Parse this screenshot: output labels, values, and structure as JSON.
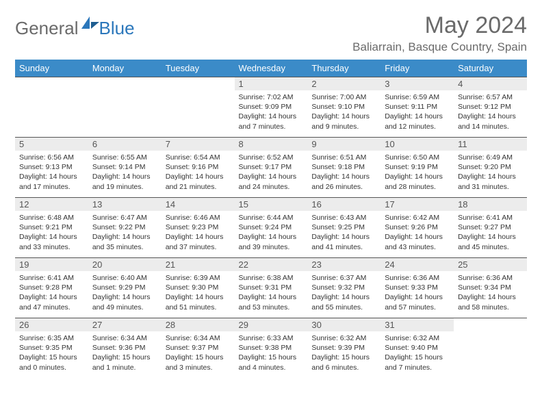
{
  "logo": {
    "general": "General",
    "blue": "Blue"
  },
  "title": "May 2024",
  "location": "Baliarrain, Basque Country, Spain",
  "brand_color": "#3b8bc8",
  "weekdays": [
    "Sunday",
    "Monday",
    "Tuesday",
    "Wednesday",
    "Thursday",
    "Friday",
    "Saturday"
  ],
  "weeks": [
    [
      null,
      null,
      null,
      {
        "n": "1",
        "rise": "7:02 AM",
        "set": "9:09 PM",
        "dl": "14 hours and 7 minutes."
      },
      {
        "n": "2",
        "rise": "7:00 AM",
        "set": "9:10 PM",
        "dl": "14 hours and 9 minutes."
      },
      {
        "n": "3",
        "rise": "6:59 AM",
        "set": "9:11 PM",
        "dl": "14 hours and 12 minutes."
      },
      {
        "n": "4",
        "rise": "6:57 AM",
        "set": "9:12 PM",
        "dl": "14 hours and 14 minutes."
      }
    ],
    [
      {
        "n": "5",
        "rise": "6:56 AM",
        "set": "9:13 PM",
        "dl": "14 hours and 17 minutes."
      },
      {
        "n": "6",
        "rise": "6:55 AM",
        "set": "9:14 PM",
        "dl": "14 hours and 19 minutes."
      },
      {
        "n": "7",
        "rise": "6:54 AM",
        "set": "9:16 PM",
        "dl": "14 hours and 21 minutes."
      },
      {
        "n": "8",
        "rise": "6:52 AM",
        "set": "9:17 PM",
        "dl": "14 hours and 24 minutes."
      },
      {
        "n": "9",
        "rise": "6:51 AM",
        "set": "9:18 PM",
        "dl": "14 hours and 26 minutes."
      },
      {
        "n": "10",
        "rise": "6:50 AM",
        "set": "9:19 PM",
        "dl": "14 hours and 28 minutes."
      },
      {
        "n": "11",
        "rise": "6:49 AM",
        "set": "9:20 PM",
        "dl": "14 hours and 31 minutes."
      }
    ],
    [
      {
        "n": "12",
        "rise": "6:48 AM",
        "set": "9:21 PM",
        "dl": "14 hours and 33 minutes."
      },
      {
        "n": "13",
        "rise": "6:47 AM",
        "set": "9:22 PM",
        "dl": "14 hours and 35 minutes."
      },
      {
        "n": "14",
        "rise": "6:46 AM",
        "set": "9:23 PM",
        "dl": "14 hours and 37 minutes."
      },
      {
        "n": "15",
        "rise": "6:44 AM",
        "set": "9:24 PM",
        "dl": "14 hours and 39 minutes."
      },
      {
        "n": "16",
        "rise": "6:43 AM",
        "set": "9:25 PM",
        "dl": "14 hours and 41 minutes."
      },
      {
        "n": "17",
        "rise": "6:42 AM",
        "set": "9:26 PM",
        "dl": "14 hours and 43 minutes."
      },
      {
        "n": "18",
        "rise": "6:41 AM",
        "set": "9:27 PM",
        "dl": "14 hours and 45 minutes."
      }
    ],
    [
      {
        "n": "19",
        "rise": "6:41 AM",
        "set": "9:28 PM",
        "dl": "14 hours and 47 minutes."
      },
      {
        "n": "20",
        "rise": "6:40 AM",
        "set": "9:29 PM",
        "dl": "14 hours and 49 minutes."
      },
      {
        "n": "21",
        "rise": "6:39 AM",
        "set": "9:30 PM",
        "dl": "14 hours and 51 minutes."
      },
      {
        "n": "22",
        "rise": "6:38 AM",
        "set": "9:31 PM",
        "dl": "14 hours and 53 minutes."
      },
      {
        "n": "23",
        "rise": "6:37 AM",
        "set": "9:32 PM",
        "dl": "14 hours and 55 minutes."
      },
      {
        "n": "24",
        "rise": "6:36 AM",
        "set": "9:33 PM",
        "dl": "14 hours and 57 minutes."
      },
      {
        "n": "25",
        "rise": "6:36 AM",
        "set": "9:34 PM",
        "dl": "14 hours and 58 minutes."
      }
    ],
    [
      {
        "n": "26",
        "rise": "6:35 AM",
        "set": "9:35 PM",
        "dl": "15 hours and 0 minutes."
      },
      {
        "n": "27",
        "rise": "6:34 AM",
        "set": "9:36 PM",
        "dl": "15 hours and 1 minute."
      },
      {
        "n": "28",
        "rise": "6:34 AM",
        "set": "9:37 PM",
        "dl": "15 hours and 3 minutes."
      },
      {
        "n": "29",
        "rise": "6:33 AM",
        "set": "9:38 PM",
        "dl": "15 hours and 4 minutes."
      },
      {
        "n": "30",
        "rise": "6:32 AM",
        "set": "9:39 PM",
        "dl": "15 hours and 6 minutes."
      },
      {
        "n": "31",
        "rise": "6:32 AM",
        "set": "9:40 PM",
        "dl": "15 hours and 7 minutes."
      },
      null
    ]
  ],
  "labels": {
    "sunrise": "Sunrise:",
    "sunset": "Sunset:",
    "daylight": "Daylight:"
  }
}
